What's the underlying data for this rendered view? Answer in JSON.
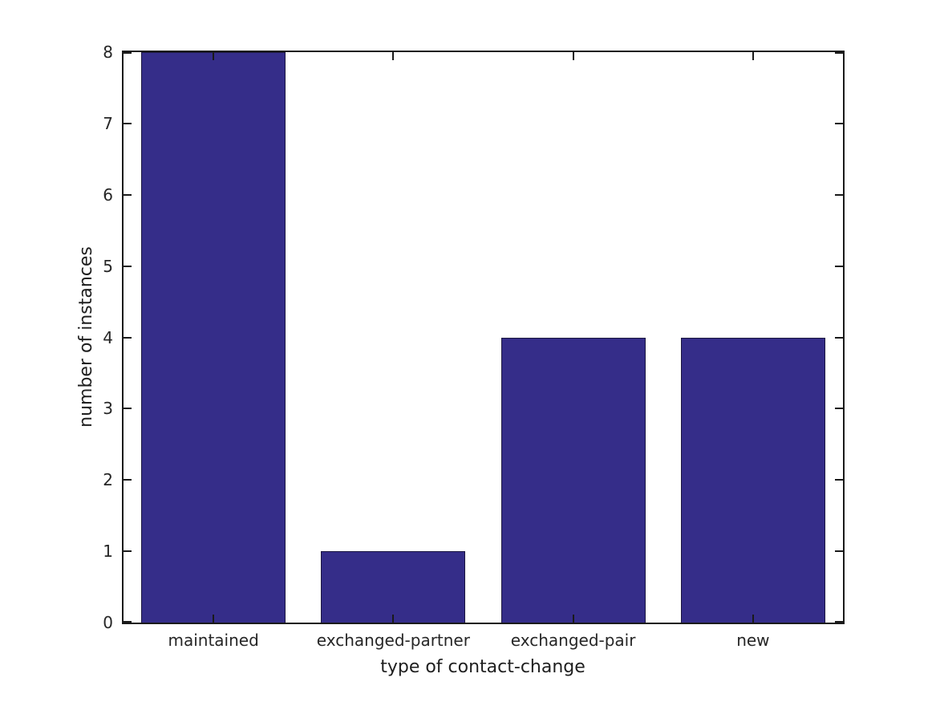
{
  "chart_data": {
    "type": "bar",
    "categories": [
      "maintained",
      "exchanged-partner",
      "exchanged-pair",
      "new"
    ],
    "values": [
      8,
      1,
      4,
      4
    ],
    "title": "",
    "xlabel": "type of contact-change",
    "ylabel": "number of instances",
    "ylim": [
      0,
      8
    ],
    "yticks": [
      0,
      1,
      2,
      3,
      4,
      5,
      6,
      7,
      8
    ],
    "bar_color": "#352d89",
    "bar_edge_color": "#1b1640",
    "axis_color": "#1a1a1a",
    "text_color": "#262626",
    "background_color": "#ffffff",
    "grid": false,
    "tick_direction": "in",
    "legend": null
  }
}
